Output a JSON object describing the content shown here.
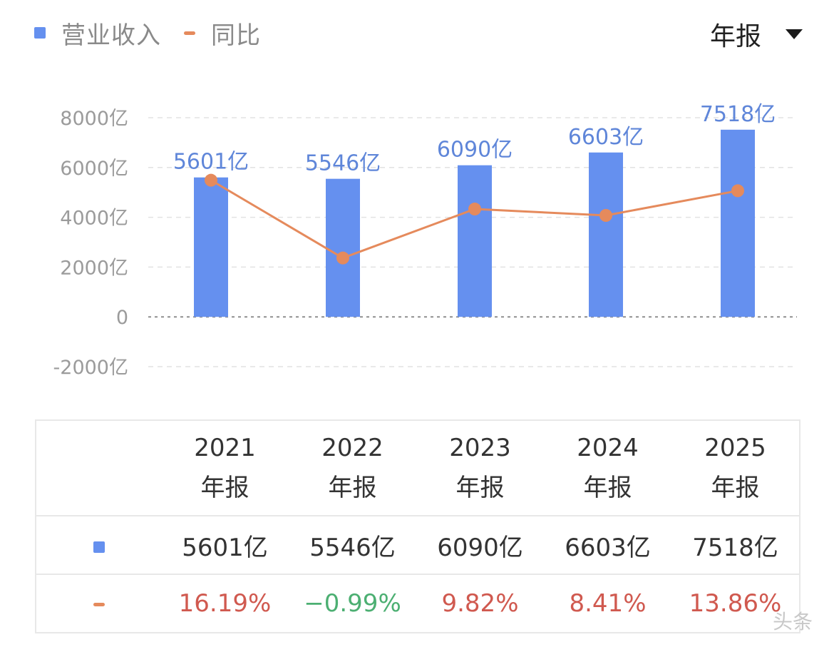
{
  "legend": {
    "revenue_label": "营业收入",
    "yoy_label": "同比"
  },
  "period_selector": {
    "label": "年报"
  },
  "chart_data": {
    "type": "bar",
    "categories": [
      "2021",
      "2022",
      "2023",
      "2024",
      "2025"
    ],
    "series": [
      {
        "name": "营业收入",
        "type": "bar",
        "values": [
          5601,
          5546,
          6090,
          6603,
          7518
        ],
        "labels": [
          "5601亿",
          "5546亿",
          "6090亿",
          "6603亿",
          "7518亿"
        ]
      },
      {
        "name": "同比",
        "type": "line",
        "values": [
          16.19,
          -0.99,
          9.82,
          8.41,
          13.86
        ]
      }
    ],
    "y_ticks": [
      "8000亿",
      "6000亿",
      "4000亿",
      "2000亿",
      "0",
      "-2000亿"
    ],
    "ylim": [
      -2000,
      8000
    ],
    "grid": true,
    "colors": {
      "bar": "#6590ef",
      "line": "#e58a5c"
    }
  },
  "table": {
    "years": [
      "2021",
      "2022",
      "2023",
      "2024",
      "2025"
    ],
    "period_suffix": [
      "年报",
      "年报",
      "年报",
      "年报",
      "年报"
    ],
    "revenue": [
      "5601亿",
      "5546亿",
      "6090亿",
      "6603亿",
      "7518亿"
    ],
    "yoy": [
      "16.19%",
      "−0.99%",
      "9.82%",
      "8.41%",
      "13.86%"
    ]
  },
  "watermark": "头条"
}
